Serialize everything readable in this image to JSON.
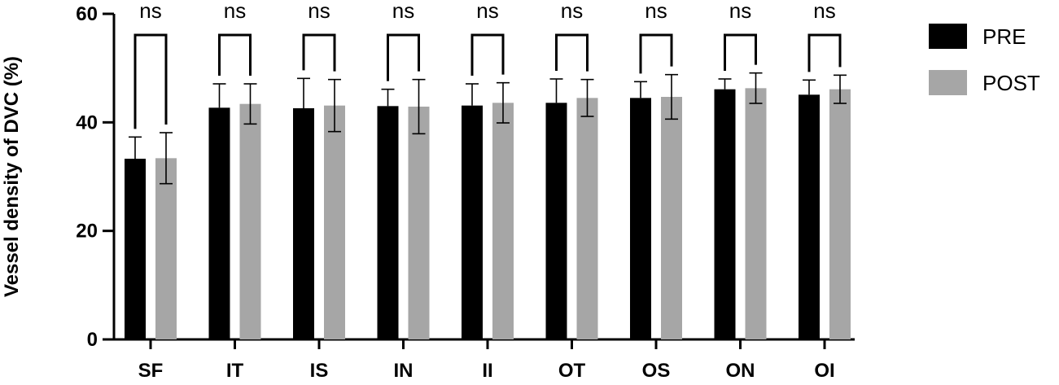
{
  "chart_data": {
    "type": "bar",
    "ylabel": "Vessel density of DVC (%)",
    "ylim": [
      0,
      60
    ],
    "yticks": [
      "0",
      "20",
      "40",
      "60"
    ],
    "categories": [
      "SF",
      "IT",
      "IS",
      "IN",
      "II",
      "OT",
      "OS",
      "ON",
      "OI"
    ],
    "series": [
      {
        "name": "PRE",
        "color": "#000000",
        "values": [
          33.3,
          42.7,
          42.6,
          43.0,
          43.1,
          43.6,
          44.5,
          46.1,
          45.1
        ],
        "errors": [
          4.0,
          4.4,
          5.5,
          3.1,
          4.0,
          4.4,
          3.0,
          1.9,
          2.7
        ]
      },
      {
        "name": "POST",
        "color": "#a6a6a6",
        "values": [
          33.4,
          43.4,
          43.1,
          42.9,
          43.6,
          44.5,
          44.7,
          46.3,
          46.1
        ],
        "errors": [
          4.7,
          3.7,
          4.8,
          5.0,
          3.7,
          3.4,
          4.1,
          2.8,
          2.6
        ]
      }
    ],
    "significance": [
      "ns",
      "ns",
      "ns",
      "ns",
      "ns",
      "ns",
      "ns",
      "ns",
      "ns"
    ],
    "legend": "right",
    "grid": false
  }
}
